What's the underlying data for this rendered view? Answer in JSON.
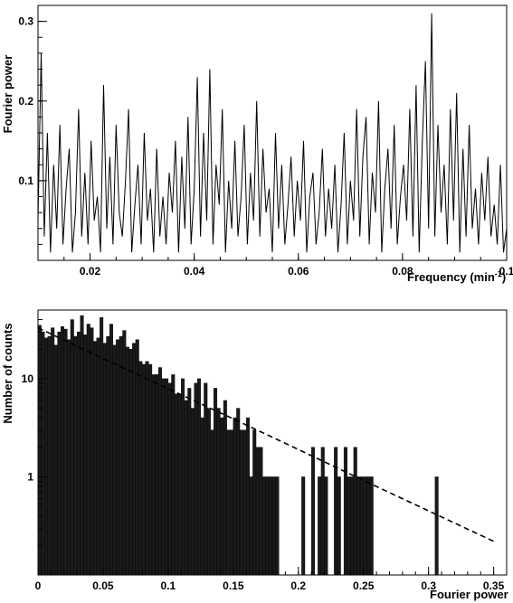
{
  "chart_data": [
    {
      "type": "line",
      "title": "",
      "xlabel": "Frequency (min",
      "xlabel_sup": "-1",
      "xlabel_close": ")",
      "ylabel": "Fourier power",
      "xlim": [
        0.01,
        0.1
      ],
      "ylim": [
        0,
        0.32
      ],
      "xticks": [
        "0.02",
        "0.04",
        "0.06",
        "0.08",
        "0.1"
      ],
      "yticks": [
        "0.1",
        "0.2",
        "0.3"
      ],
      "grid": false,
      "series": [
        {
          "x": [
            0.01,
            0.0106,
            0.0112,
            0.0118,
            0.0124,
            0.013,
            0.0136,
            0.0142,
            0.0148,
            0.0154,
            0.016,
            0.0166,
            0.0172,
            0.0178,
            0.0184,
            0.019,
            0.0196,
            0.0202,
            0.0208,
            0.0214,
            0.022,
            0.0226,
            0.0232,
            0.0238,
            0.0244,
            0.025,
            0.0256,
            0.0262,
            0.0268,
            0.0274,
            0.028,
            0.0286,
            0.0292,
            0.0298,
            0.0304,
            0.031,
            0.0316,
            0.0322,
            0.0328,
            0.0334,
            0.034,
            0.0346,
            0.0352,
            0.0358,
            0.0364,
            0.037,
            0.0376,
            0.0382,
            0.0388,
            0.0394,
            0.04,
            0.0406,
            0.0412,
            0.0418,
            0.0424,
            0.043,
            0.0436,
            0.0442,
            0.0448,
            0.0454,
            0.046,
            0.0466,
            0.0472,
            0.0478,
            0.0484,
            0.049,
            0.0496,
            0.0502,
            0.0508,
            0.0514,
            0.052,
            0.0526,
            0.0532,
            0.0538,
            0.0544,
            0.055,
            0.0556,
            0.0562,
            0.0568,
            0.0574,
            0.058,
            0.0586,
            0.0592,
            0.0598,
            0.0604,
            0.061,
            0.0616,
            0.0622,
            0.0628,
            0.0634,
            0.064,
            0.0646,
            0.0652,
            0.0658,
            0.0664,
            0.067,
            0.0676,
            0.0682,
            0.0688,
            0.0694,
            0.07,
            0.0706,
            0.0712,
            0.0718,
            0.0724,
            0.073,
            0.0736,
            0.0742,
            0.0748,
            0.0754,
            0.076,
            0.0766,
            0.0772,
            0.0778,
            0.0784,
            0.079,
            0.0796,
            0.0802,
            0.0808,
            0.0814,
            0.082,
            0.0826,
            0.0832,
            0.0838,
            0.0844,
            0.085,
            0.0856,
            0.0862,
            0.0868,
            0.0874,
            0.088,
            0.0886,
            0.0892,
            0.0898,
            0.0904,
            0.091,
            0.0916,
            0.0922,
            0.0928,
            0.0934,
            0.094,
            0.0946,
            0.0952,
            0.0958,
            0.0964,
            0.097,
            0.0976,
            0.0982,
            0.0988,
            0.0994,
            0.1
          ],
          "y": [
            0.05,
            0.26,
            0.03,
            0.16,
            0.01,
            0.12,
            0.04,
            0.17,
            0.02,
            0.09,
            0.14,
            0.01,
            0.06,
            0.19,
            0.03,
            0.11,
            0.02,
            0.15,
            0.05,
            0.08,
            0.01,
            0.22,
            0.04,
            0.13,
            0.02,
            0.17,
            0.06,
            0.03,
            0.1,
            0.19,
            0.01,
            0.07,
            0.12,
            0.02,
            0.16,
            0.05,
            0.09,
            0.01,
            0.14,
            0.03,
            0.08,
            0.02,
            0.11,
            0.06,
            0.15,
            0.01,
            0.13,
            0.04,
            0.18,
            0.02,
            0.09,
            0.23,
            0.03,
            0.16,
            0.05,
            0.24,
            0.02,
            0.12,
            0.07,
            0.19,
            0.01,
            0.1,
            0.04,
            0.15,
            0.03,
            0.08,
            0.17,
            0.02,
            0.11,
            0.05,
            0.2,
            0.03,
            0.14,
            0.06,
            0.09,
            0.01,
            0.16,
            0.04,
            0.12,
            0.02,
            0.07,
            0.13,
            0.03,
            0.1,
            0.05,
            0.15,
            0.01,
            0.08,
            0.11,
            0.02,
            0.06,
            0.14,
            0.03,
            0.09,
            0.04,
            0.12,
            0.01,
            0.07,
            0.16,
            0.02,
            0.1,
            0.05,
            0.19,
            0.03,
            0.13,
            0.18,
            0.02,
            0.11,
            0.06,
            0.2,
            0.01,
            0.09,
            0.14,
            0.04,
            0.17,
            0.02,
            0.08,
            0.12,
            0.05,
            0.19,
            0.03,
            0.22,
            0.01,
            0.15,
            0.25,
            0.04,
            0.31,
            0.03,
            0.17,
            0.06,
            0.12,
            0.02,
            0.19,
            0.05,
            0.21,
            0.01,
            0.14,
            0.03,
            0.17,
            0.04,
            0.09,
            0.02,
            0.11,
            0.05,
            0.13,
            0.03,
            0.07,
            0.02,
            0.12,
            0.01,
            0.04
          ]
        }
      ]
    },
    {
      "type": "bar",
      "title": "",
      "xlabel": "Fourier power",
      "ylabel": "Number of counts",
      "xlim": [
        0,
        0.36
      ],
      "ylim": [
        0.1,
        50
      ],
      "yscale": "log",
      "xticks": [
        "0",
        "0.05",
        "0.1",
        "0.15",
        "0.2",
        "0.25",
        "0.3",
        "0.35"
      ],
      "yticks": [
        "1",
        "10"
      ],
      "grid": false,
      "bin_width": 0.0025,
      "values": [
        35,
        30,
        26,
        27,
        33,
        22,
        30,
        34,
        32,
        25,
        40,
        27,
        30,
        44,
        28,
        36,
        33,
        24,
        26,
        42,
        23,
        27,
        36,
        22,
        25,
        27,
        31,
        21,
        20,
        23,
        25,
        15,
        14,
        15,
        14,
        11,
        11,
        13,
        10,
        10,
        9,
        11,
        7,
        7,
        10,
        6,
        8,
        5,
        9,
        10,
        4,
        9,
        5,
        3,
        8,
        5,
        4,
        6,
        3,
        3,
        4,
        5,
        3,
        3,
        4,
        1,
        3,
        2,
        2,
        1,
        1,
        1,
        1,
        1,
        0,
        0,
        0,
        0,
        0,
        0,
        0,
        1,
        0,
        0,
        2,
        0,
        1,
        2,
        1,
        0,
        0,
        2,
        1,
        0,
        2,
        1,
        1,
        2,
        1,
        1,
        1,
        1,
        1,
        0,
        0,
        0,
        0,
        0,
        0,
        0,
        0,
        0,
        0,
        0,
        0,
        0,
        0,
        0,
        0,
        0,
        0,
        0,
        1
      ],
      "fit_curve": {
        "style": "dashed",
        "x": [
          0,
          0.05,
          0.1,
          0.15,
          0.2,
          0.25,
          0.3,
          0.35
        ],
        "y": [
          33,
          16,
          7.9,
          3.9,
          1.9,
          0.92,
          0.45,
          0.22
        ]
      }
    }
  ]
}
